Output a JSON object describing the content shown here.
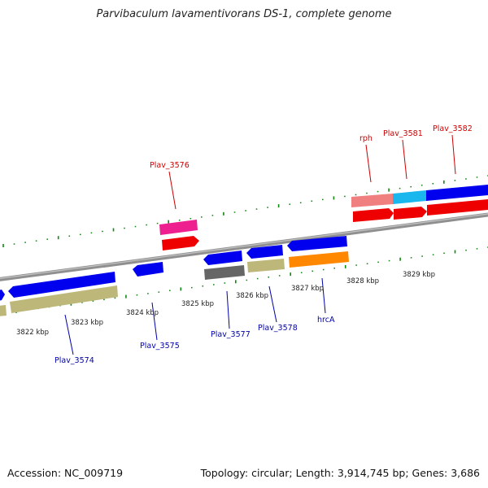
{
  "title": "Parvibaculum lavamentivorans DS-1, complete genome",
  "footer": {
    "accession": "Accession: NC_009719",
    "topology": "Topology: circular; Length: 3,914,745 bp; Genes: 3,686"
  },
  "map": {
    "tick_labels": [
      {
        "text": "3822 kbp"
      },
      {
        "text": "3823 kbp"
      },
      {
        "text": "3824 kbp"
      },
      {
        "text": "3825 kbp"
      },
      {
        "text": "3826 kbp"
      },
      {
        "text": "3827 kbp"
      },
      {
        "text": "3828 kbp"
      },
      {
        "text": "3829 kbp"
      }
    ],
    "gene_labels_top": [
      {
        "text": "Plav_3576"
      },
      {
        "text": "rph"
      },
      {
        "text": "Plav_3581"
      },
      {
        "text": "Plav_3582"
      }
    ],
    "gene_labels_bottom": [
      {
        "text": "Plav_3574"
      },
      {
        "text": "Plav_3575"
      },
      {
        "text": "Plav_3577"
      },
      {
        "text": "Plav_3578"
      },
      {
        "text": "hrcA"
      }
    ],
    "colors": {
      "backbone": "#888888",
      "cds_forward": "#0000ee",
      "cds_reverse": "#1a1aee",
      "orf_khaki": "#bdb77a",
      "red": "#ee0000",
      "magenta": "#ee1f8f",
      "salmon": "#f08080",
      "cyan": "#1ab6ee",
      "orange": "#ff8800",
      "gray": "#666666",
      "ticks": "#118811",
      "label_top": "#cc0000",
      "label_bottom": "#0000aa"
    }
  }
}
